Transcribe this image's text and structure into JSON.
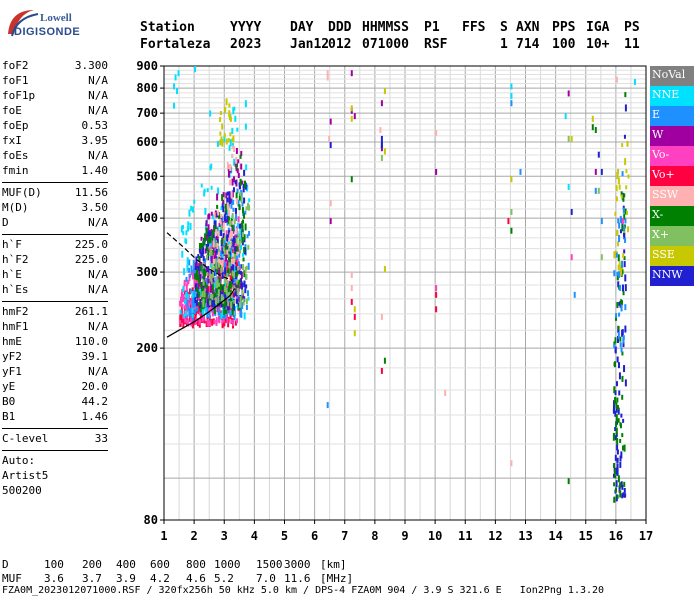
{
  "logo": {
    "line1": "Lowell",
    "line2": "DIGISONDE"
  },
  "header": {
    "labels": [
      "Station",
      "YYYY",
      "DAY",
      "DDD",
      "HHMMSS",
      "P1",
      "FFS",
      "S",
      "AXN",
      "PPS",
      "IGA",
      "PS"
    ],
    "values": [
      "Fortaleza",
      "2023",
      "Jan12",
      "012",
      "071000",
      "RSF",
      "",
      "1",
      "714",
      "100",
      "10+",
      "11"
    ]
  },
  "params": [
    {
      "name": "foF2",
      "value": "3.300"
    },
    {
      "name": "foF1",
      "value": "N/A"
    },
    {
      "name": "foF1p",
      "value": "N/A"
    },
    {
      "name": "foE",
      "value": "N/A"
    },
    {
      "name": "foEp",
      "value": "0.53"
    },
    {
      "name": "fxI",
      "value": "3.95"
    },
    {
      "name": "foEs",
      "value": "N/A"
    },
    {
      "name": "fmin",
      "value": "1.40"
    },
    {
      "sep": true
    },
    {
      "name": "MUF(D)",
      "value": "11.56"
    },
    {
      "name": "M(D)",
      "value": "3.50"
    },
    {
      "name": "D",
      "value": "N/A"
    },
    {
      "sep": true
    },
    {
      "name": "h`F",
      "value": "225.0"
    },
    {
      "name": "h`F2",
      "value": "225.0"
    },
    {
      "name": "h`E",
      "value": "N/A"
    },
    {
      "name": "h`Es",
      "value": "N/A"
    },
    {
      "sep": true
    },
    {
      "name": "hmF2",
      "value": "261.1"
    },
    {
      "name": "hmF1",
      "value": "N/A"
    },
    {
      "name": "hmE",
      "value": "110.0"
    },
    {
      "name": "yF2",
      "value": "39.1"
    },
    {
      "name": "yF1",
      "value": "N/A"
    },
    {
      "name": "yE",
      "value": "20.0"
    },
    {
      "name": "B0",
      "value": "44.2"
    },
    {
      "name": "B1",
      "value": "1.46"
    },
    {
      "sep": true
    },
    {
      "name": "C-level",
      "value": "33"
    },
    {
      "sep": true
    },
    {
      "text": "Auto:"
    },
    {
      "text": "Artist5"
    },
    {
      "text": "500200"
    }
  ],
  "legend": [
    {
      "label": "NoVal",
      "color": "#808080"
    },
    {
      "label": "NNE",
      "color": "#00e0ff"
    },
    {
      "label": "E",
      "color": "#1e90ff"
    },
    {
      "label": "W",
      "color": "#a000a0"
    },
    {
      "label": "Vo-",
      "color": "#ff40c0"
    },
    {
      "label": "Vo+",
      "color": "#ff0040"
    },
    {
      "label": "SSW",
      "color": "#ffb0b0"
    },
    {
      "label": "X-",
      "color": "#008000"
    },
    {
      "label": "X+",
      "color": "#80c060"
    },
    {
      "label": "SSE",
      "color": "#c8c800"
    },
    {
      "label": "NNW",
      "color": "#2020d0"
    }
  ],
  "footer": {
    "row1": {
      "label": "D",
      "values": [
        "100",
        "200",
        "400",
        "600",
        "800",
        "1000",
        "1500",
        "3000"
      ],
      "unit": "[km]"
    },
    "row2": {
      "label": "MUF",
      "values": [
        "3.6",
        "3.7",
        "3.9",
        "4.2",
        "4.6",
        "5.2",
        "7.0",
        "11.6"
      ],
      "unit": "[MHz]"
    },
    "source": "FZA0M_2023012071000.RSF / 320fx256h 50 kHz 5.0 km / DPS-4 FZA0M 904 / 3.9 S 321.6 E   Ion2Png 1.3.20"
  },
  "chart_data": {
    "type": "scatter",
    "title": "",
    "xlabel": "",
    "ylabel": "",
    "xlim": [
      1,
      17
    ],
    "ylim": [
      80,
      900
    ],
    "y_scale": "log",
    "x_ticks": [
      1,
      2,
      3,
      4,
      5,
      6,
      7,
      8,
      9,
      10,
      11,
      12,
      13,
      14,
      15,
      16,
      17
    ],
    "y_ticks": [
      80,
      200,
      300,
      400,
      500,
      600,
      700,
      800,
      900
    ],
    "grid": true,
    "legend_position": "right",
    "traces": [
      {
        "name": "O-trace",
        "style": "solid",
        "x": [
          1.1,
          1.5,
          2.0,
          2.5,
          2.9,
          3.2,
          3.35
        ],
        "y": [
          212,
          220,
          230,
          243,
          255,
          265,
          275
        ]
      },
      {
        "name": "X-trace",
        "style": "dashed",
        "x": [
          1.1,
          1.6,
          2.1,
          2.5,
          2.9,
          3.1,
          3.25
        ],
        "y": [
          370,
          345,
          320,
          305,
          294,
          290,
          287
        ]
      }
    ],
    "clusters": [
      {
        "series": "Vo+",
        "x": [
          1.5,
          3.4
        ],
        "y": [
          230,
          360
        ],
        "n": 260
      },
      {
        "series": "Vo-",
        "x": [
          1.5,
          3.5
        ],
        "y": [
          232,
          420
        ],
        "n": 220
      },
      {
        "series": "E",
        "x": [
          1.7,
          3.8
        ],
        "y": [
          240,
          520
        ],
        "n": 180
      },
      {
        "series": "NNE",
        "x": [
          1.5,
          3.8
        ],
        "y": [
          240,
          900
        ],
        "n": 120
      },
      {
        "series": "W",
        "x": [
          2.0,
          3.6
        ],
        "y": [
          250,
          650
        ],
        "n": 110
      },
      {
        "series": "NNW",
        "x": [
          2.0,
          3.7
        ],
        "y": [
          250,
          560
        ],
        "n": 160
      },
      {
        "series": "X-",
        "x": [
          2.0,
          3.7
        ],
        "y": [
          245,
          600
        ],
        "n": 130
      },
      {
        "series": "X+",
        "x": [
          2.2,
          3.8
        ],
        "y": [
          255,
          500
        ],
        "n": 90
      },
      {
        "series": "SSE",
        "x": [
          2.8,
          3.3
        ],
        "y": [
          600,
          900
        ],
        "n": 20
      },
      {
        "series": "SSW",
        "x": [
          2.6,
          3.4
        ],
        "y": [
          320,
          650
        ],
        "n": 40
      },
      {
        "series": "NNW",
        "x": [
          15.9,
          16.3
        ],
        "y": [
          90,
          870
        ],
        "n": 70
      },
      {
        "series": "X-",
        "x": [
          15.9,
          16.3
        ],
        "y": [
          90,
          870
        ],
        "n": 60
      },
      {
        "series": "SSE",
        "x": [
          15.9,
          16.4
        ],
        "y": [
          300,
          870
        ],
        "n": 30
      },
      {
        "series": "E",
        "x": [
          15.9,
          16.3
        ],
        "y": [
          200,
          760
        ],
        "n": 25
      }
    ],
    "points": [
      {
        "series": "NNE",
        "x": [
          1.3,
          1.3,
          1.35,
          1.4,
          1.45,
          2.0,
          2.5,
          12.5,
          12.5,
          14.3,
          14.4,
          16.6
        ],
        "y": [
          740,
          820,
          860,
          800,
          880,
          900,
          710,
          820,
          780,
          700,
          480,
          840
        ]
      },
      {
        "series": "SSW",
        "x": [
          6.4,
          6.4,
          6.45,
          6.5,
          7.2,
          7.2,
          8.15,
          8.2,
          10.0,
          10.3,
          12.5,
          16.0
        ],
        "y": [
          880,
          860,
          620,
          440,
          300,
          280,
          650,
          240,
          640,
          160,
          110,
          850
        ]
      },
      {
        "series": "W",
        "x": [
          6.5,
          6.5,
          7.2,
          7.2,
          7.3,
          8.2,
          8.2,
          10.0,
          14.4,
          15.3
        ],
        "y": [
          680,
          400,
          880,
          720,
          700,
          590,
          750,
          520,
          790,
          520
        ]
      },
      {
        "series": "SSE",
        "x": [
          7.2,
          7.2,
          7.3,
          7.3,
          8.3,
          8.3,
          8.3,
          12.5,
          14.5,
          15.2
        ],
        "y": [
          730,
          690,
          250,
          220,
          800,
          310,
          580,
          500,
          620,
          690
        ]
      },
      {
        "series": "X-",
        "x": [
          7.2,
          8.2,
          8.3,
          12.5,
          14.4,
          15.2,
          15.3
        ],
        "y": [
          500,
          600,
          190,
          380,
          100,
          660,
          650
        ]
      },
      {
        "series": "Vo+",
        "x": [
          7.2,
          7.3,
          8.2,
          10.0,
          10.0,
          12.4
        ],
        "y": [
          260,
          240,
          180,
          270,
          250,
          400
        ]
      },
      {
        "series": "E",
        "x": [
          6.4,
          12.5,
          12.8,
          14.6,
          15.3,
          15.5
        ],
        "y": [
          150,
          750,
          520,
          270,
          470,
          400
        ]
      },
      {
        "series": "NNW",
        "x": [
          6.5,
          8.2,
          8.2,
          14.5,
          15.5,
          15.4
        ],
        "y": [
          600,
          620,
          600,
          420,
          520,
          570
        ]
      },
      {
        "series": "X+",
        "x": [
          8.2,
          12.5,
          14.4,
          15.4,
          15.5
        ],
        "y": [
          560,
          420,
          620,
          470,
          330
        ]
      },
      {
        "series": "Vo-",
        "x": [
          10.0,
          14.5,
          16.2
        ],
        "y": [
          280,
          330,
          400
        ]
      }
    ]
  }
}
